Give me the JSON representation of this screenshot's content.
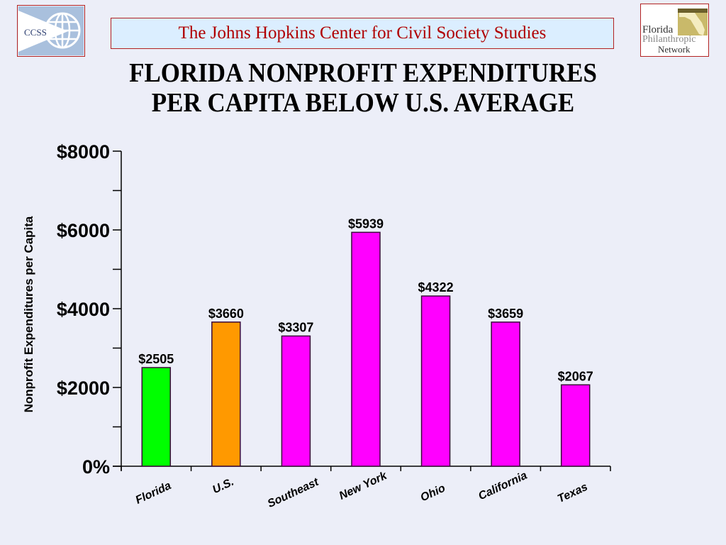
{
  "header": {
    "left_logo_text": "CCSS",
    "banner_text": "The Johns Hopkins Center for Civil Society Studies",
    "right_logo_lines": [
      "Florida",
      "Philanthropic",
      "Network"
    ]
  },
  "chart_data": {
    "type": "bar",
    "title": "FLORIDA NONPROFIT EXPENDITURES PER CAPITA BELOW U.S. AVERAGE",
    "title_lines": [
      "FLORIDA NONPROFIT EXPENDITURES",
      "PER CAPITA BELOW U.S. AVERAGE"
    ],
    "xlabel": "",
    "ylabel": "Nonprofit Expenditures per Capita",
    "categories": [
      "Florida",
      "U.S.",
      "Southeast",
      "New York",
      "Ohio",
      "California",
      "Texas"
    ],
    "values": [
      2505,
      3660,
      3307,
      5939,
      4322,
      3659,
      2067
    ],
    "value_labels": [
      "$2505",
      "$3660",
      "$3307",
      "$5939",
      "$4322",
      "$3659",
      "$2067"
    ],
    "colors": [
      "#00ff00",
      "#ff9900",
      "#ff00ff",
      "#ff00ff",
      "#ff00ff",
      "#ff00ff",
      "#ff00ff"
    ],
    "ylim": [
      0,
      8000
    ],
    "yticks_major": [
      0,
      2000,
      4000,
      6000,
      8000
    ],
    "ytick_labels": [
      "0%",
      "$2000",
      "$4000",
      "$6000",
      "$8000"
    ],
    "yticks_minor": [
      1000,
      3000,
      5000,
      7000
    ],
    "grid": false,
    "legend": "none"
  }
}
